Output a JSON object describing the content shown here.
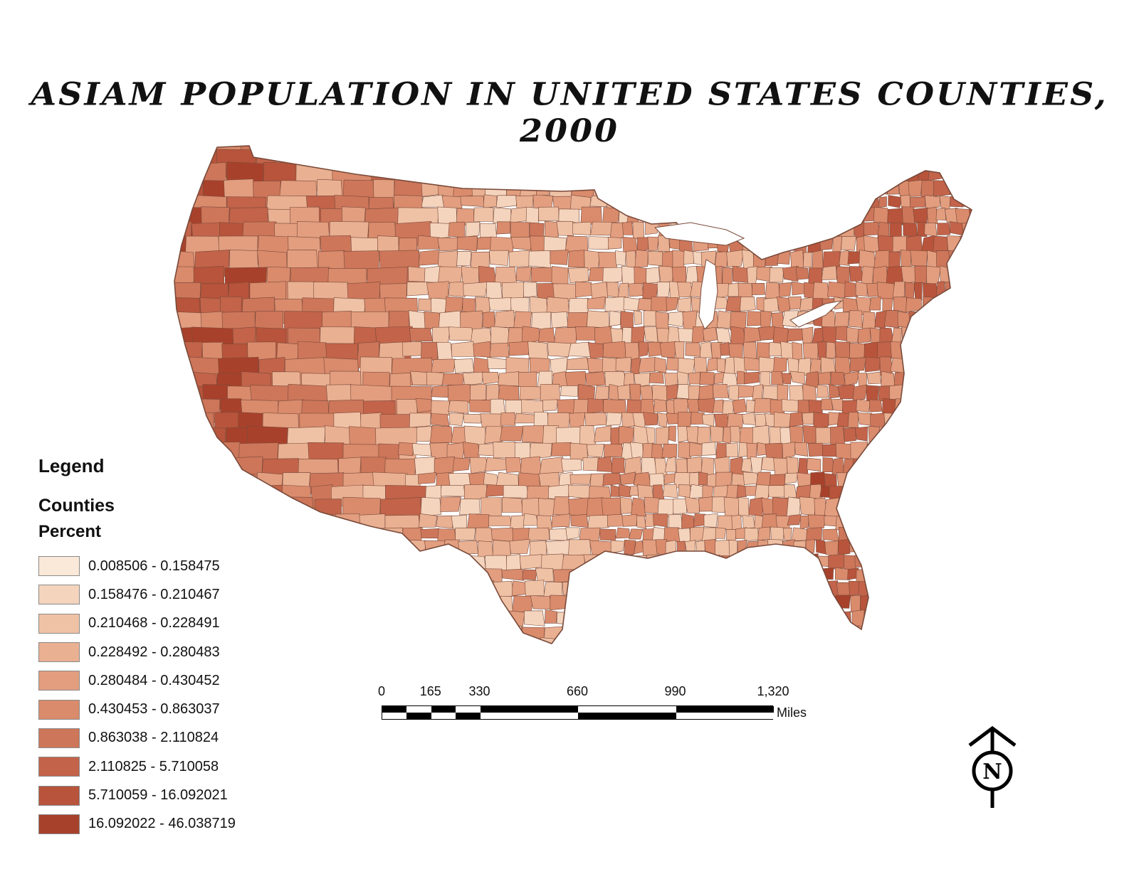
{
  "title": "ASIAM POPULATION IN UNITED STATES COUNTIES, 2000",
  "legend": {
    "title": "Legend",
    "layer": "Counties",
    "field": "Percent",
    "classes": [
      {
        "label": "0.008506 - 0.158475",
        "color": "#fae8d8"
      },
      {
        "label": "0.158476 - 0.210467",
        "color": "#f4d4bd"
      },
      {
        "label": "0.210468 - 0.228491",
        "color": "#efc2a6"
      },
      {
        "label": "0.228492 - 0.280483",
        "color": "#e9b092"
      },
      {
        "label": "0.280484 - 0.430452",
        "color": "#e29e7f"
      },
      {
        "label": "0.430453 - 0.863037",
        "color": "#d98b6c"
      },
      {
        "label": "0.863038 - 2.110824",
        "color": "#cd765a"
      },
      {
        "label": "2.110825 - 5.710058",
        "color": "#c2634a"
      },
      {
        "label": "5.710059 - 16.092021",
        "color": "#b7543b"
      },
      {
        "label": "16.092022 - 46.038719",
        "color": "#a8412b"
      }
    ]
  },
  "scale_bar": {
    "ticks": [
      "0",
      "165",
      "330",
      "660",
      "990",
      "1,320"
    ],
    "tick_values": [
      0,
      165,
      330,
      660,
      990,
      1320
    ],
    "unit": "Miles"
  },
  "north_arrow": {
    "letter": "N"
  },
  "colors": {
    "county_border": "#7a4a3a",
    "background": "#ffffff"
  }
}
